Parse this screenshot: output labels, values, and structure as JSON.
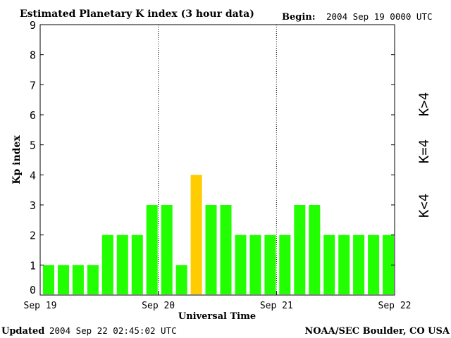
{
  "header": {
    "title": "Estimated Planetary K index (3 hour data)",
    "begin_label": "Begin:",
    "begin_value": "2004 Sep 19 0000 UTC"
  },
  "footer": {
    "updated_label": "Updated",
    "updated_value": "2004 Sep 22 02:45:02 UTC",
    "source": "NOAA/SEC Boulder, CO USA"
  },
  "legend": {
    "high": "K>4",
    "mid": "K=4",
    "low": "K<4"
  },
  "colors": {
    "low": "#22ff00",
    "mid": "#ffcc00",
    "high": "#ff2200"
  },
  "chart_data": {
    "type": "bar",
    "title": "Estimated Planetary K index (3 hour data)",
    "xlabel": "Universal Time",
    "ylabel": "Kp index",
    "ylim": [
      0,
      9
    ],
    "yticks": [
      0,
      1,
      2,
      3,
      4,
      5,
      6,
      7,
      8,
      9
    ],
    "xticks": [
      "Sep 19",
      "Sep 20",
      "Sep 21",
      "Sep 22"
    ],
    "interval_hours": 3,
    "values": [
      1,
      1,
      1,
      1,
      2,
      2,
      2,
      3,
      3,
      1,
      4,
      3,
      3,
      2,
      2,
      2,
      2,
      3,
      3,
      2,
      2,
      2,
      2,
      2
    ],
    "grid": "vertical dotted at day boundaries",
    "legend_placement": "right"
  }
}
